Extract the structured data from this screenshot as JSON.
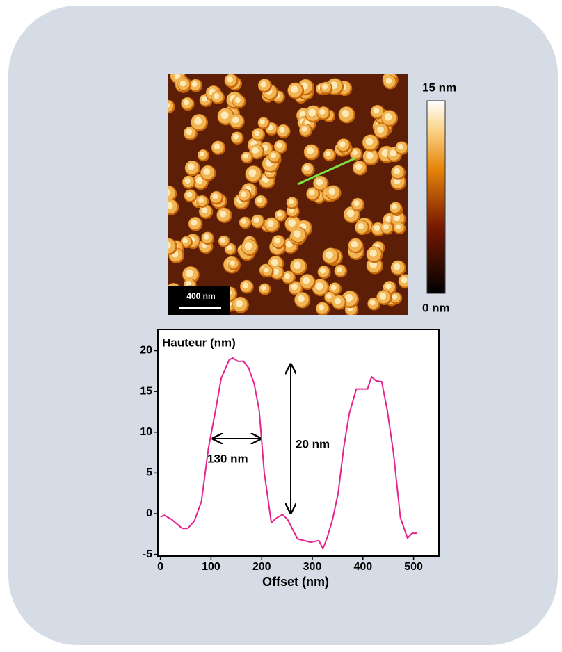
{
  "image": {
    "scale_bar": "400 nm",
    "colorbar_max": "15 nm",
    "colorbar_min": "0 nm"
  },
  "chart_data": {
    "type": "line",
    "y_label": "Hauteur (nm)",
    "x_label": "Offset (nm)",
    "annotations": [
      "130 nm",
      "20 nm"
    ],
    "xlim": [
      -5,
      550
    ],
    "ylim": [
      -5.2,
      22.6
    ],
    "xticks": [
      0,
      100,
      200,
      300,
      400,
      500
    ],
    "yticks": [
      -5,
      0,
      5,
      10,
      15,
      20
    ],
    "series": [
      {
        "color": "#e6228c",
        "x": [
          0,
          8,
          22,
          43,
          54,
          67,
          81,
          95,
          109,
          120,
          136,
          143,
          153,
          164,
          174,
          185,
          195,
          205,
          219,
          230,
          241,
          251,
          260,
          271,
          284,
          296,
          313,
          321,
          329,
          340,
          351,
          362,
          373,
          387,
          409,
          417,
          426,
          437,
          448,
          460,
          474,
          488,
          497,
          506
        ],
        "values": [
          -0.4,
          -0.2,
          -0.7,
          -1.8,
          -1.8,
          -0.9,
          1.5,
          8.1,
          12.7,
          16.6,
          18.9,
          19.1,
          18.7,
          18.7,
          17.9,
          16.0,
          12.7,
          5.1,
          -1.1,
          -0.5,
          -0.1,
          -0.7,
          -1.8,
          -3.1,
          -3.3,
          -3.5,
          -3.3,
          -4.3,
          -3.0,
          -0.7,
          2.5,
          8.1,
          12.3,
          15.3,
          15.3,
          16.8,
          16.3,
          16.2,
          12.7,
          7.6,
          -0.5,
          -3.0,
          -2.4,
          -2.4
        ]
      }
    ]
  }
}
